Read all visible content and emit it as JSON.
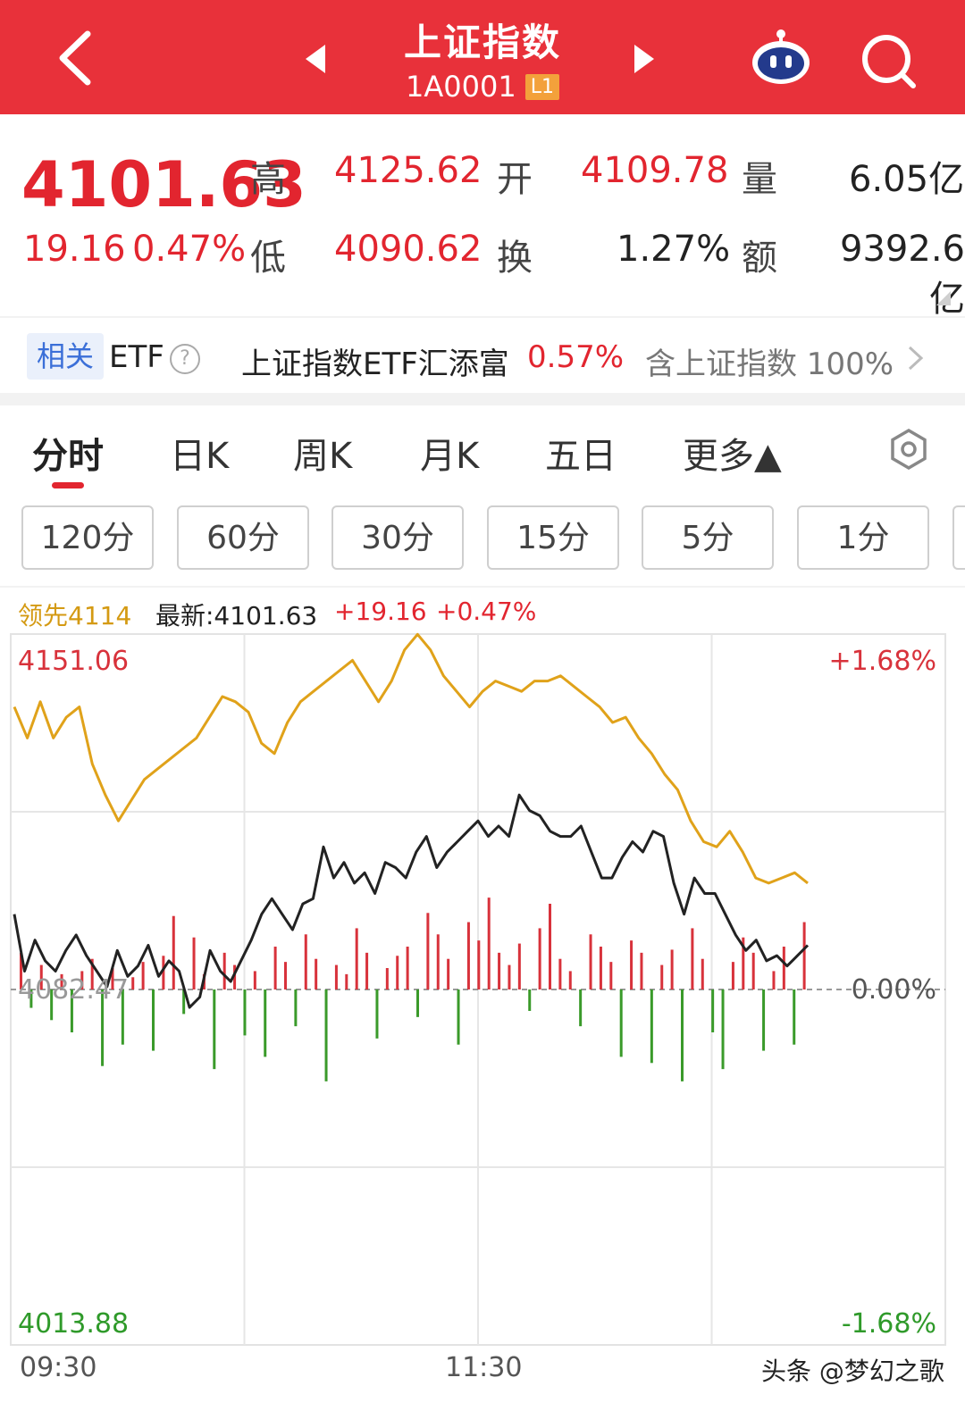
{
  "header": {
    "title": "上证指数",
    "code": "1A0001",
    "level_badge": "L1",
    "bg_color": "#e8313a"
  },
  "quote": {
    "price": "4101.63",
    "change": "19.16",
    "change_pct": "0.47%",
    "high_label": "高",
    "high": "4125.62",
    "low_label": "低",
    "low": "4090.62",
    "open_label": "开",
    "open": "4109.78",
    "turnover_label": "换",
    "turnover": "1.27%",
    "volume_label": "量",
    "volume": "6.05亿",
    "amount_label": "额",
    "amount": "9392.6亿"
  },
  "etf": {
    "tag": "相关",
    "word": "ETF",
    "help": "?",
    "name": "上证指数ETF汇添富",
    "pct": "0.57%",
    "contains": "含上证指数 100%"
  },
  "tabs": [
    "分时",
    "日K",
    "周K",
    "月K",
    "五日",
    "更多▲"
  ],
  "periods": [
    "120分",
    "60分",
    "30分",
    "15分",
    "5分",
    "1分"
  ],
  "chart_info": {
    "lead": "领先4114",
    "latest": "最新:4101.63",
    "change": "+19.16",
    "change_pct": "+0.47%"
  },
  "chart_data": {
    "type": "line",
    "y_top_label": "4151.06",
    "y_mid_label": "4082.47",
    "y_bottom_label": "4013.88",
    "pct_top_label": "+1.68%",
    "pct_mid_label": "0.00%",
    "pct_bottom_label": "-1.68%",
    "x_ticks": [
      "09:30",
      "11:30"
    ],
    "ylim": [
      4013.88,
      4151.06
    ],
    "prev_close": 4082.47,
    "series": [
      {
        "name": "最新",
        "color": "#222222",
        "values": [
          4097,
          4086,
          4092,
          4088,
          4086,
          4090,
          4093,
          4089,
          4086,
          4083,
          4090,
          4085,
          4087,
          4091,
          4085,
          4088,
          4086,
          4079,
          4081,
          4090,
          4086,
          4084,
          4088,
          4092,
          4097,
          4100,
          4097,
          4094,
          4099,
          4100,
          4110,
          4104,
          4107,
          4103,
          4105,
          4101,
          4107,
          4106,
          4104,
          4109,
          4112,
          4106,
          4109,
          4111,
          4113,
          4115,
          4112,
          4114,
          4112,
          4120,
          4117,
          4116,
          4113,
          4112,
          4112,
          4114,
          4109,
          4104,
          4104,
          4108,
          4111,
          4109,
          4113,
          4112,
          4103,
          4097,
          4104,
          4101,
          4101,
          4097,
          4093,
          4090,
          4092,
          4088,
          4089,
          4087,
          4089,
          4091
        ]
      },
      {
        "name": "领先",
        "color": "#e0a21a",
        "values": [
          4137,
          4131,
          4138,
          4131,
          4135,
          4137,
          4126,
          4120,
          4115,
          4119,
          4123,
          4125,
          4127,
          4129,
          4131,
          4135,
          4139,
          4138,
          4136,
          4130,
          4128,
          4134,
          4138,
          4140,
          4142,
          4144,
          4146,
          4142,
          4138,
          4142,
          4148,
          4151,
          4148,
          4143,
          4140,
          4137,
          4140,
          4142,
          4141,
          4140,
          4142,
          4142,
          4143,
          4141,
          4139,
          4137,
          4134,
          4135,
          4131,
          4128,
          4124,
          4121,
          4115,
          4111,
          4110,
          4113,
          4109,
          4104,
          4103,
          4104,
          4105,
          4103
        ]
      }
    ],
    "volume_bars": [
      12,
      -6,
      8,
      -10,
      5,
      -14,
      6,
      10,
      -25,
      7,
      -18,
      4,
      9,
      -20,
      11,
      24,
      -8,
      17,
      5,
      -26,
      12,
      8,
      -15,
      6,
      -22,
      14,
      9,
      -12,
      18,
      10,
      -30,
      8,
      5,
      20,
      12,
      -16,
      7,
      11,
      14,
      -9,
      25,
      18,
      10,
      -18,
      22,
      16,
      30,
      12,
      8,
      15,
      -7,
      20,
      28,
      10,
      6,
      -12,
      18,
      14,
      9,
      -22,
      16,
      12,
      -24,
      8,
      13,
      -30,
      20,
      10,
      -14,
      -26,
      9,
      17,
      12,
      -20,
      6,
      14,
      -18,
      22
    ]
  },
  "footer": {
    "watermark": "头条 @梦幻之歌"
  }
}
